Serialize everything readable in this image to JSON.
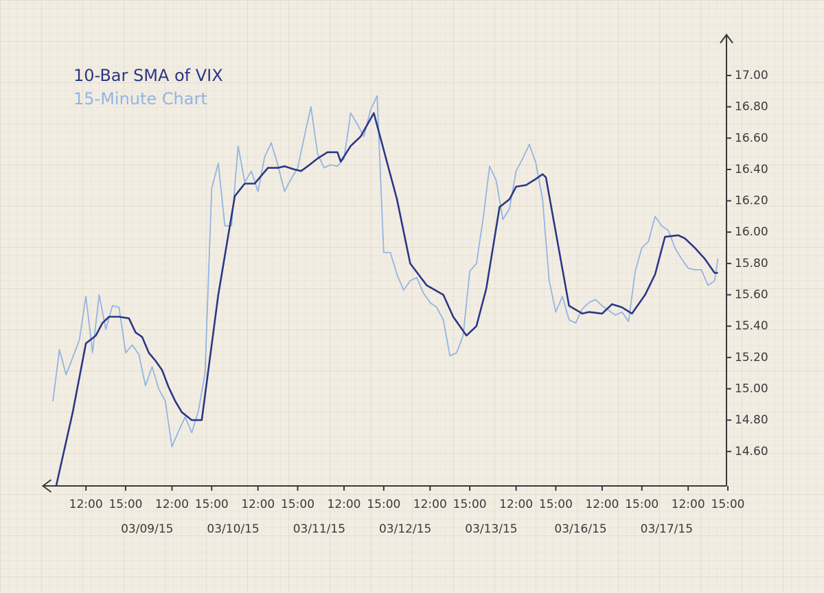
{
  "chart_data": {
    "type": "line",
    "series": [
      {
        "name": "10-Bar SMA of VIX",
        "color": "#2b3785",
        "x": [
          1,
          6,
          10,
          13,
          15,
          17,
          20,
          23,
          25,
          27,
          29,
          31,
          33,
          35,
          37,
          39,
          42,
          45,
          50,
          55,
          58,
          61,
          63,
          65,
          68,
          70,
          73,
          75,
          77,
          80,
          83,
          86,
          87,
          90,
          93,
          97,
          104,
          108,
          113,
          118,
          121,
          125,
          128,
          131,
          135,
          138,
          140,
          143,
          146,
          148,
          149,
          156,
          160,
          162,
          166,
          169,
          172,
          175,
          179,
          182,
          185,
          189,
          191,
          194,
          197,
          200,
          201
        ],
        "values": [
          14.38,
          14.85,
          15.29,
          15.34,
          15.42,
          15.46,
          15.46,
          15.45,
          15.36,
          15.33,
          15.23,
          15.18,
          15.12,
          15.01,
          14.92,
          14.85,
          14.8,
          14.8,
          15.6,
          16.23,
          16.31,
          16.31,
          16.36,
          16.41,
          16.41,
          16.42,
          16.4,
          16.39,
          16.42,
          16.47,
          16.51,
          16.51,
          16.45,
          16.55,
          16.61,
          16.76,
          16.21,
          15.8,
          15.66,
          15.6,
          15.46,
          15.34,
          15.4,
          15.64,
          16.16,
          16.21,
          16.29,
          16.3,
          16.34,
          16.37,
          16.35,
          15.53,
          15.48,
          15.49,
          15.48,
          15.54,
          15.52,
          15.48,
          15.6,
          15.73,
          15.97,
          15.98,
          15.96,
          15.9,
          15.83,
          15.74,
          15.74
        ]
      },
      {
        "name": "15-Minute Chart",
        "color": "#93b5e1",
        "x": [
          0,
          2,
          4,
          6,
          8,
          10,
          12,
          14,
          16,
          18,
          20,
          22,
          24,
          26,
          28,
          30,
          32,
          34,
          36,
          38,
          40,
          42,
          44,
          46,
          48,
          50,
          52,
          54,
          56,
          58,
          60,
          62,
          64,
          66,
          68,
          70,
          72,
          74,
          76,
          78,
          80,
          82,
          84,
          86,
          88,
          90,
          92,
          94,
          96,
          98,
          100,
          102,
          104,
          106,
          108,
          110,
          112,
          114,
          116,
          118,
          120,
          122,
          124,
          126,
          128,
          130,
          132,
          134,
          136,
          138,
          140,
          142,
          144,
          146,
          148,
          150,
          152,
          154,
          156,
          158,
          160,
          162,
          164,
          166,
          168,
          170,
          172,
          174,
          176,
          178,
          180,
          182,
          184,
          186,
          188,
          190,
          192,
          194,
          196,
          198,
          200,
          201
        ],
        "values": [
          14.92,
          15.25,
          15.09,
          15.2,
          15.31,
          15.59,
          15.23,
          15.6,
          15.38,
          15.53,
          15.52,
          15.23,
          15.28,
          15.22,
          15.02,
          15.14,
          15.0,
          14.92,
          14.63,
          14.73,
          14.82,
          14.72,
          14.86,
          15.1,
          16.28,
          16.44,
          16.04,
          16.04,
          16.55,
          16.32,
          16.39,
          16.26,
          16.48,
          16.57,
          16.43,
          16.26,
          16.34,
          16.41,
          16.61,
          16.8,
          16.5,
          16.41,
          16.43,
          16.42,
          16.47,
          16.76,
          16.69,
          16.61,
          16.78,
          16.87,
          15.87,
          15.87,
          15.73,
          15.63,
          15.69,
          15.71,
          15.61,
          15.55,
          15.52,
          15.44,
          15.21,
          15.23,
          15.34,
          15.75,
          15.8,
          16.08,
          16.42,
          16.33,
          16.08,
          16.15,
          16.39,
          16.47,
          16.56,
          16.44,
          16.21,
          15.69,
          15.49,
          15.59,
          15.44,
          15.42,
          15.51,
          15.55,
          15.57,
          15.53,
          15.5,
          15.47,
          15.49,
          15.43,
          15.75,
          15.9,
          15.94,
          16.1,
          16.04,
          16.01,
          15.9,
          15.83,
          15.77,
          15.76,
          15.76,
          15.66,
          15.69,
          15.83
        ]
      }
    ],
    "xlim": [
      -3,
      204
    ],
    "xticks": [
      {
        "value": 10,
        "label": "12:00"
      },
      {
        "value": 22,
        "label": "15:00"
      },
      {
        "value": 36,
        "label": "12:00"
      },
      {
        "value": 48,
        "label": "15:00"
      },
      {
        "value": 62,
        "label": "12:00"
      },
      {
        "value": 74,
        "label": "15:00"
      },
      {
        "value": 88,
        "label": "12:00"
      },
      {
        "value": 100,
        "label": "15:00"
      },
      {
        "value": 114,
        "label": "12:00"
      },
      {
        "value": 126,
        "label": "15:00"
      },
      {
        "value": 140,
        "label": "12:00"
      },
      {
        "value": 152,
        "label": "15:00"
      },
      {
        "value": 166,
        "label": "12:00"
      },
      {
        "value": 178,
        "label": "15:00"
      },
      {
        "value": 192,
        "label": "12:00"
      },
      {
        "value": 204,
        "label": "15:00"
      }
    ],
    "xticks_secondary": [
      {
        "value": 28.5,
        "label": "03/09/15"
      },
      {
        "value": 54.5,
        "label": "03/10/15"
      },
      {
        "value": 80.5,
        "label": "03/11/15"
      },
      {
        "value": 106.5,
        "label": "03/12/15"
      },
      {
        "value": 132.5,
        "label": "03/13/15"
      },
      {
        "value": 159.5,
        "label": "03/16/15"
      },
      {
        "value": 185.5,
        "label": "03/17/15"
      }
    ],
    "ylim": [
      14.38,
      17.26
    ],
    "yticks": [
      {
        "value": 14.6,
        "label": "14.60"
      },
      {
        "value": 14.8,
        "label": "14.80"
      },
      {
        "value": 15.0,
        "label": "15.00"
      },
      {
        "value": 15.2,
        "label": "15.20"
      },
      {
        "value": 15.4,
        "label": "15.40"
      },
      {
        "value": 15.6,
        "label": "15.60"
      },
      {
        "value": 15.8,
        "label": "15.80"
      },
      {
        "value": 16.0,
        "label": "16.00"
      },
      {
        "value": 16.2,
        "label": "16.20"
      },
      {
        "value": 16.4,
        "label": "16.40"
      },
      {
        "value": 16.6,
        "label": "16.60"
      },
      {
        "value": 16.8,
        "label": "16.80"
      },
      {
        "value": 17.0,
        "label": "17.00"
      }
    ]
  }
}
